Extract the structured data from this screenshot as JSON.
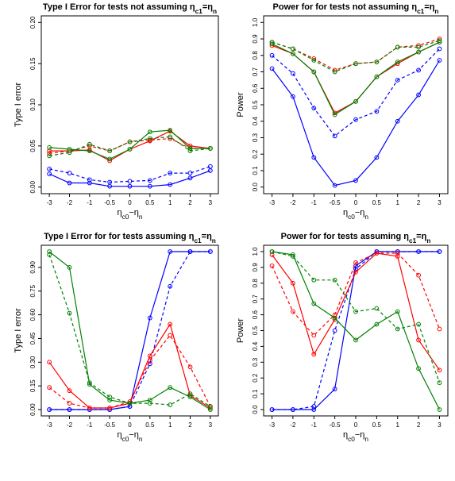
{
  "chart_data": [
    {
      "type": "line",
      "title": "Type I Error for tests not assuming ηc1=ηn",
      "xlabel": "ηc0−ηn",
      "ylabel": "Type I error",
      "x": [
        "-3",
        "-2",
        "-1",
        "-0.5",
        "0",
        "0.5",
        "1",
        "2",
        "3"
      ],
      "xticks": [
        "-3",
        "-2",
        "-1",
        "-0.5",
        "0",
        "0.5",
        "1",
        "2",
        "3"
      ],
      "yticks": [
        "0.00",
        "0.05",
        "0.10",
        "0.15",
        "0.20"
      ],
      "ylim": [
        0,
        0.2
      ],
      "series": [
        {
          "color": "#0000ff",
          "style": "solid",
          "values": [
            0.016,
            0.005,
            0.005,
            0.001,
            0.001,
            0.001,
            0.003,
            0.011,
            0.02
          ]
        },
        {
          "color": "#0000ff",
          "style": "dashed",
          "values": [
            0.022,
            0.017,
            0.009,
            0.006,
            0.007,
            0.008,
            0.017,
            0.017,
            0.025
          ]
        },
        {
          "color": "#ff0000",
          "style": "solid",
          "values": [
            0.044,
            0.044,
            0.045,
            0.032,
            0.046,
            0.056,
            0.068,
            0.05,
            0.047
          ]
        },
        {
          "color": "#ff0000",
          "style": "dashed",
          "values": [
            0.041,
            0.044,
            0.05,
            0.044,
            0.055,
            0.057,
            0.059,
            0.047,
            0.047
          ]
        },
        {
          "color": "#008000",
          "style": "solid",
          "values": [
            0.048,
            0.046,
            0.044,
            0.034,
            0.046,
            0.067,
            0.069,
            0.047,
            0.047
          ]
        },
        {
          "color": "#008000",
          "style": "dashed",
          "values": [
            0.038,
            0.042,
            0.052,
            0.044,
            0.055,
            0.059,
            0.061,
            0.044,
            0.047
          ]
        }
      ]
    },
    {
      "type": "line",
      "title": "Power for for tests not assuming ηc1=ηn",
      "xlabel": "ηc0−ηn",
      "ylabel": "Power",
      "x": [
        "-3",
        "-2",
        "-1",
        "-0.5",
        "0",
        "0.5",
        "1",
        "2",
        "3"
      ],
      "xticks": [
        "-3",
        "-2",
        "-1",
        "-0.5",
        "0",
        "0.5",
        "1",
        "2",
        "3"
      ],
      "yticks": [
        "0.0",
        "0.1",
        "0.2",
        "0.3",
        "0.4",
        "0.5",
        "0.6",
        "0.7",
        "0.8",
        "0.9",
        "1.0"
      ],
      "ylim": [
        0,
        1
      ],
      "series": [
        {
          "color": "#0000ff",
          "style": "solid",
          "values": [
            0.72,
            0.55,
            0.18,
            0.01,
            0.04,
            0.18,
            0.4,
            0.56,
            0.77
          ]
        },
        {
          "color": "#0000ff",
          "style": "dashed",
          "values": [
            0.8,
            0.69,
            0.48,
            0.31,
            0.41,
            0.46,
            0.65,
            0.71,
            0.84
          ]
        },
        {
          "color": "#ff0000",
          "style": "solid",
          "values": [
            0.86,
            0.81,
            0.7,
            0.45,
            0.52,
            0.67,
            0.75,
            0.82,
            0.88
          ]
        },
        {
          "color": "#ff0000",
          "style": "dashed",
          "values": [
            0.88,
            0.84,
            0.78,
            0.71,
            0.75,
            0.76,
            0.85,
            0.86,
            0.9
          ]
        },
        {
          "color": "#008000",
          "style": "solid",
          "values": [
            0.87,
            0.81,
            0.7,
            0.44,
            0.52,
            0.67,
            0.76,
            0.82,
            0.88
          ]
        },
        {
          "color": "#008000",
          "style": "dashed",
          "values": [
            0.88,
            0.84,
            0.77,
            0.7,
            0.75,
            0.76,
            0.85,
            0.85,
            0.89
          ]
        }
      ]
    },
    {
      "type": "line",
      "title": "Type I Error for for tests assuming ηc1=ηn",
      "xlabel": "ηc0−ηn",
      "ylabel": "Type I error",
      "x": [
        "-3",
        "-2",
        "-1",
        "-0.5",
        "0",
        "0.5",
        "1",
        "2",
        "3"
      ],
      "xticks": [
        "-3",
        "-2",
        "-1",
        "-0.5",
        "0",
        "0.5",
        "1",
        "2",
        "3"
      ],
      "yticks": [
        "0.00",
        "0.15",
        "0.30",
        "0.45",
        "0.60",
        "0.75",
        "0.90"
      ],
      "ylim": [
        0,
        1
      ],
      "series": [
        {
          "color": "#0000ff",
          "style": "solid",
          "values": [
            0.0,
            0.0,
            0.0,
            0.0,
            0.02,
            0.58,
            1.0,
            1.0,
            1.0
          ]
        },
        {
          "color": "#0000ff",
          "style": "dashed",
          "values": [
            0.0,
            0.0,
            0.0,
            0.0,
            0.02,
            0.29,
            0.78,
            1.0,
            1.0
          ]
        },
        {
          "color": "#ff0000",
          "style": "solid",
          "values": [
            0.3,
            0.12,
            0.01,
            0.01,
            0.04,
            0.34,
            0.54,
            0.09,
            0.01
          ]
        },
        {
          "color": "#ff0000",
          "style": "dashed",
          "values": [
            0.14,
            0.04,
            0.01,
            0.01,
            0.05,
            0.31,
            0.47,
            0.27,
            0.02
          ]
        },
        {
          "color": "#008000",
          "style": "solid",
          "values": [
            1.0,
            0.9,
            0.16,
            0.06,
            0.04,
            0.06,
            0.14,
            0.08,
            0.0
          ]
        },
        {
          "color": "#008000",
          "style": "dashed",
          "values": [
            0.98,
            0.61,
            0.17,
            0.08,
            0.04,
            0.04,
            0.03,
            0.1,
            0.02
          ]
        }
      ]
    },
    {
      "type": "line",
      "title": "Power for for tests assuming ηc1=ηn",
      "xlabel": "ηc0−ηn",
      "ylabel": "Power",
      "x": [
        "-3",
        "-2",
        "-1",
        "-0.5",
        "0",
        "0.5",
        "1",
        "2",
        "3"
      ],
      "xticks": [
        "-3",
        "-2",
        "-1",
        "-0.5",
        "0",
        "0.5",
        "1",
        "2",
        "3"
      ],
      "yticks": [
        "0.0",
        "0.1",
        "0.2",
        "0.3",
        "0.4",
        "0.5",
        "0.6",
        "0.7",
        "0.8",
        "0.9",
        "1.0"
      ],
      "ylim": [
        0,
        1
      ],
      "series": [
        {
          "color": "#0000ff",
          "style": "solid",
          "values": [
            0.0,
            0.0,
            0.0,
            0.13,
            0.91,
            1.0,
            1.0,
            1.0,
            1.0
          ]
        },
        {
          "color": "#0000ff",
          "style": "dashed",
          "values": [
            0.0,
            0.0,
            0.02,
            0.5,
            0.89,
            1.0,
            1.0,
            1.0,
            1.0
          ]
        },
        {
          "color": "#ff0000",
          "style": "solid",
          "values": [
            0.98,
            0.8,
            0.35,
            0.57,
            0.87,
            0.99,
            0.97,
            0.44,
            0.25
          ]
        },
        {
          "color": "#ff0000",
          "style": "dashed",
          "values": [
            0.91,
            0.62,
            0.47,
            0.6,
            0.93,
            0.99,
            0.99,
            0.85,
            0.51
          ]
        },
        {
          "color": "#008000",
          "style": "solid",
          "values": [
            1.0,
            0.98,
            0.67,
            0.58,
            0.44,
            0.54,
            0.62,
            0.26,
            0.0
          ]
        },
        {
          "color": "#008000",
          "style": "dashed",
          "values": [
            1.0,
            0.97,
            0.82,
            0.82,
            0.62,
            0.64,
            0.51,
            0.54,
            0.17
          ]
        }
      ]
    }
  ]
}
